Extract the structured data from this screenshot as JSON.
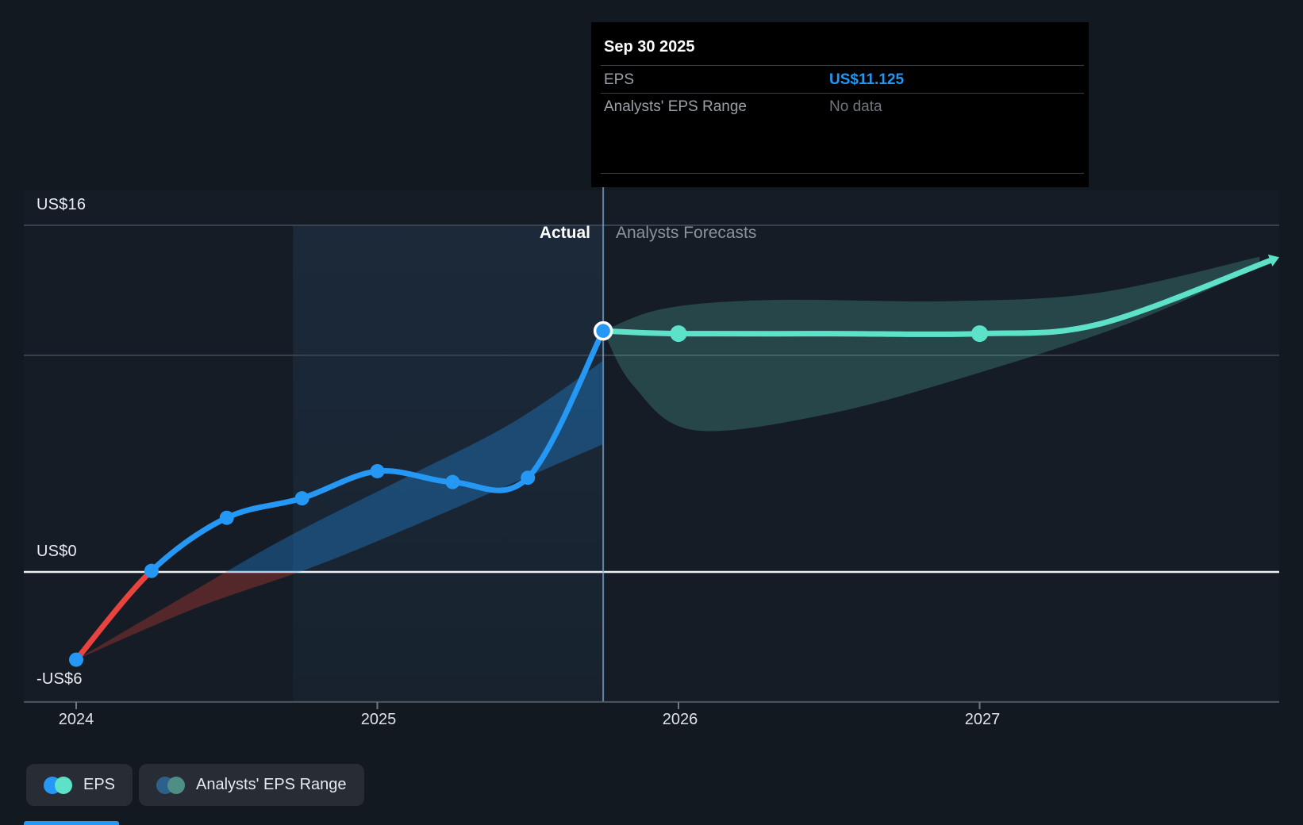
{
  "tooltip": {
    "date": "Sep 30 2025",
    "rows": [
      {
        "label": "EPS",
        "value": "US$11.125"
      },
      {
        "label": "Analysts' EPS Range",
        "value": "No data"
      }
    ]
  },
  "chart_labels": {
    "actual": "Actual",
    "forecasts": "Analysts Forecasts"
  },
  "y_axis": {
    "labels": [
      "US$16",
      "US$0",
      "-US$6"
    ]
  },
  "x_axis": {
    "labels": [
      "2024",
      "2025",
      "2026",
      "2027"
    ]
  },
  "legend": {
    "items": [
      {
        "label": "EPS"
      },
      {
        "label": "Analysts' EPS Range"
      }
    ]
  },
  "chart_data": {
    "type": "line",
    "title": "EPS: Actual vs Analysts Forecasts",
    "y_unit": "US$",
    "xlim": [
      2023.83,
      2028.0
    ],
    "ylim": [
      -6,
      16
    ],
    "x_ticks": [
      2024,
      2025,
      2026,
      2027
    ],
    "y_gridlines": [
      16,
      10,
      0,
      -6
    ],
    "divider_x": 2025.75,
    "highlight_x": [
      2024.72,
      2025.75
    ],
    "selected_point": {
      "x": 2025.75,
      "y": 11.125,
      "date": "Sep 30 2025"
    },
    "colors": {
      "actual": "#2598F5",
      "negative": "#E8433F",
      "forecast": "#5DE2C9",
      "past_range": "rgba(33,150,243,0.33)",
      "past_range_negative": "rgba(232,67,60,0.30)",
      "forecast_range": "rgba(96,210,192,0.235)",
      "divider": "rgba(130,175,215,0.7)",
      "zero_line": "#EDF1F4",
      "gridline": "#39424E",
      "axis_line": "#4E565F"
    },
    "series": [
      {
        "name": "EPS actual",
        "points": [
          [
            2024.0,
            -4.05
          ],
          [
            2024.25,
            0.05
          ],
          [
            2024.5,
            2.5
          ],
          [
            2024.75,
            3.4
          ],
          [
            2025.0,
            4.65
          ],
          [
            2025.25,
            4.15
          ],
          [
            2025.5,
            4.35
          ],
          [
            2025.75,
            11.125
          ]
        ]
      },
      {
        "name": "EPS forecast",
        "points": [
          [
            2025.75,
            11.125
          ],
          [
            2026.0,
            11.0
          ],
          [
            2026.5,
            11.0
          ],
          [
            2027.0,
            11.0
          ],
          [
            2027.4,
            11.45
          ],
          [
            2027.97,
            14.4
          ]
        ],
        "markers": [
          [
            2026.0,
            11.0
          ],
          [
            2027.0,
            11.0
          ]
        ]
      }
    ],
    "bands": [
      {
        "name": "past analysts range",
        "upper": [
          [
            2024.0,
            -4.05
          ],
          [
            2024.35,
            -1.2
          ],
          [
            2024.7,
            1.6
          ],
          [
            2025.1,
            4.4
          ],
          [
            2025.45,
            6.9
          ],
          [
            2025.75,
            9.75
          ]
        ],
        "lower": [
          [
            2024.0,
            -4.05
          ],
          [
            2024.4,
            -1.65
          ],
          [
            2024.8,
            0.3
          ],
          [
            2025.2,
            2.6
          ],
          [
            2025.75,
            5.9
          ]
        ]
      },
      {
        "name": "forecast analysts range",
        "upper": [
          [
            2025.75,
            11.125
          ],
          [
            2025.95,
            12.15
          ],
          [
            2026.3,
            12.55
          ],
          [
            2026.9,
            12.5
          ],
          [
            2027.4,
            12.9
          ],
          [
            2027.93,
            14.55
          ]
        ],
        "lower": [
          [
            2025.75,
            11.125
          ],
          [
            2025.85,
            8.6
          ],
          [
            2026.05,
            6.55
          ],
          [
            2026.5,
            7.3
          ],
          [
            2027.0,
            9.2
          ],
          [
            2027.5,
            11.5
          ],
          [
            2027.93,
            14.1
          ]
        ]
      }
    ]
  }
}
